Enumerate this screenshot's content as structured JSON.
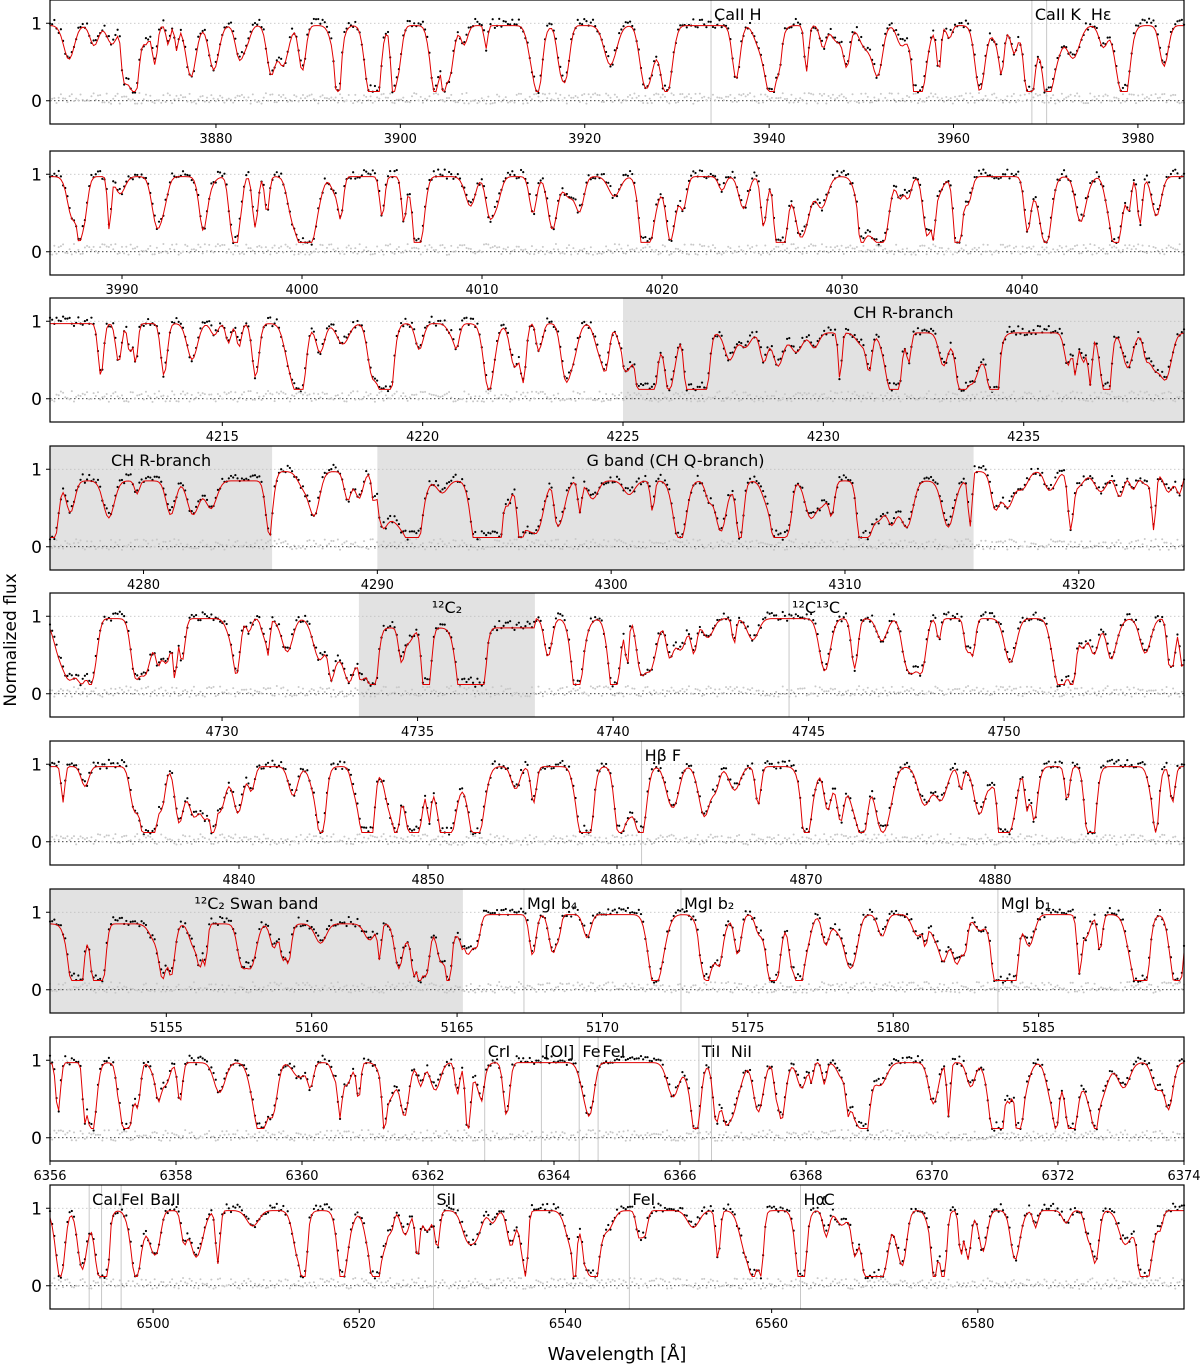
{
  "chart_data": {
    "type": "line",
    "ylabel": "Normalized flux",
    "xlabel": "Wavelength [Å]",
    "ylim": [
      -0.3,
      1.3
    ],
    "yticks": [
      0,
      1
    ],
    "grid": false,
    "series_colors": {
      "observed": "#000000",
      "model": "#e00000",
      "residual": "#c9c9c9"
    },
    "panels": [
      {
        "xlim": [
          3862,
          3985
        ],
        "xticks": [
          3880,
          3900,
          3920,
          3940,
          3960,
          3980
        ],
        "shaded": [],
        "lines": [
          {
            "label": "CaII H",
            "x": 3933.7,
            "marker": true
          },
          {
            "label": "CaII K",
            "x": 3968.5,
            "marker": true
          },
          {
            "label": "Hε",
            "x": 3970.1,
            "marker": true
          }
        ]
      },
      {
        "xlim": [
          3986,
          4049
        ],
        "xticks": [
          3990,
          4000,
          4010,
          4020,
          4030,
          4040
        ],
        "shaded": [],
        "lines": []
      },
      {
        "xlim": [
          4210.7,
          4239
        ],
        "xticks": [
          4215,
          4220,
          4225,
          4230,
          4235
        ],
        "shaded": [
          {
            "label": "CH R-branch",
            "x0": 4225,
            "x1": 4239
          }
        ],
        "lines": []
      },
      {
        "xlim": [
          4276,
          4324.5
        ],
        "xticks": [
          4280,
          4290,
          4300,
          4310,
          4320
        ],
        "shaded": [
          {
            "label": "CH R-branch",
            "x0": 4276,
            "x1": 4285.5
          },
          {
            "label": "G band (CH Q-branch)",
            "x0": 4290,
            "x1": 4315.5
          }
        ],
        "lines": []
      },
      {
        "xlim": [
          4725.6,
          4754.6
        ],
        "xticks": [
          4730,
          4735,
          4740,
          4745,
          4750
        ],
        "shaded": [
          {
            "label": "¹²C₂",
            "x0": 4733.5,
            "x1": 4738
          }
        ],
        "lines": [
          {
            "label": "¹²C¹³C",
            "x": 4744.5,
            "marker": true
          }
        ]
      },
      {
        "xlim": [
          4830,
          4890
        ],
        "xticks": [
          4840,
          4850,
          4860,
          4870,
          4880
        ],
        "shaded": [],
        "lines": [
          {
            "label": "Hβ F",
            "x": 4861.3,
            "marker": true
          }
        ]
      },
      {
        "xlim": [
          5151,
          5190
        ],
        "xticks": [
          5155,
          5160,
          5165,
          5170,
          5175,
          5180,
          5185
        ],
        "shaded": [
          {
            "label": "¹²C₂ Swan band",
            "x0": 5151,
            "x1": 5165.2
          }
        ],
        "lines": [
          {
            "label": "MgI b₄",
            "x": 5167.3,
            "marker": true
          },
          {
            "label": "MgI b₂",
            "x": 5172.7,
            "marker": true
          },
          {
            "label": "MgI b₁",
            "x": 5183.6,
            "marker": true
          }
        ]
      },
      {
        "xlim": [
          6356,
          6374
        ],
        "xticks": [
          6356,
          6358,
          6360,
          6362,
          6364,
          6366,
          6368,
          6370,
          6372,
          6374
        ],
        "shaded": [],
        "lines": [
          {
            "label": "CrI",
            "x": 6362.9,
            "marker": true
          },
          {
            "label": "[OI]",
            "x": 6363.8,
            "marker": true
          },
          {
            "label": "Fe",
            "x": 6364.4,
            "marker": true
          },
          {
            "label": "FeI",
            "x": 6364.7,
            "marker": true
          },
          {
            "label": "TiI",
            "x": 6366.3,
            "marker": true
          },
          {
            "label": "NiI",
            "x": 6366.5,
            "marker": true
          }
        ]
      },
      {
        "xlim": [
          6490,
          6600
        ],
        "xticks": [
          6500,
          6520,
          6540,
          6560,
          6580
        ],
        "shaded": [],
        "lines": [
          {
            "label": "CaI",
            "x": 6493.8,
            "marker": true
          },
          {
            "label": "FeI",
            "x": 6495,
            "marker": true
          },
          {
            "label": "BaII",
            "x": 6496.9,
            "marker": true
          },
          {
            "label": "SiI",
            "x": 6527.2,
            "marker": true
          },
          {
            "label": "FeI",
            "x": 6546.2,
            "marker": true
          },
          {
            "label": "Hα",
            "x": 6562.8,
            "marker": false
          },
          {
            "label": "C",
            "x": 6562.8,
            "marker": true
          }
        ]
      }
    ]
  }
}
